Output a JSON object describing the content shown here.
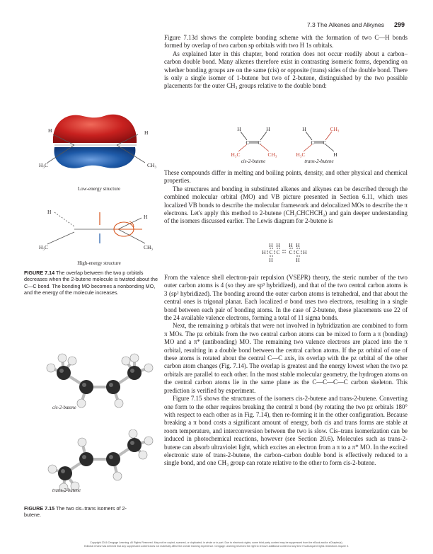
{
  "header": {
    "section": "7.3 The Alkenes and Alkynes",
    "page_number": "299"
  },
  "main": {
    "p1": "Figure 7.13d shows the complete bonding scheme with the formation of two C—H bonds formed by overlap of two carbon sp orbitals with two H 1s orbitals.",
    "p2": "As explained later in this chapter, bond rotation does not occur readily about a carbon–carbon double bond. Many alkenes therefore exist in contrasting isomeric forms, depending on whether bonding groups are on the same (cis) or opposite (trans) sides of the double bond. There is only a single isomer of 1-butene but two of 2-butene, distinguished by the two possible placements for the outer CH₃ groups relative to the double bond:",
    "p3": "These compounds differ in melting and boiling points, density, and other physical and chemical properties.",
    "p4": "The structures and bonding in substituted alkenes and alkynes can be described through the combined molecular orbital (MO) and VB picture presented in Section 6.11, which uses localized VB bonds to describe the molecular framework and delocalized MOs to describe the π electrons. Let's apply this method to 2-butene (CH₃CHCHCH₃) and gain deeper understanding of the isomers discussed earlier. The Lewis diagram for 2-butene is",
    "p5": "From the valence shell electron-pair repulsion (VSEPR) theory, the steric number of the two outer carbon atoms is 4 (so they are sp³ hybridized), and that of the two central carbon atoms is 3 (sp² hybridized). The bonding around the outer carbon atoms is tetrahedral, and that about the central ones is trigonal planar. Each localized σ bond uses two electrons, resulting in a single bond between each pair of bonding atoms. In the case of 2-butene, these placements use 22 of the 24 available valence electrons, forming a total of 11 sigma bonds.",
    "p6": "Next, the remaining p orbitals that were not involved in hybridization are combined to form π MOs. The pz orbitals from the two central carbon atoms can be mixed to form a π (bonding) MO and a π* (antibonding) MO. The remaining two valence electrons are placed into the π orbital, resulting in a double bond between the central carbon atoms. If the pz orbital of one of these atoms is rotated about the central C—C axis, its overlap with the pz orbital of the other carbon atom changes (Fig. 7.14). The overlap is greatest and the energy lowest when the two pz orbitals are parallel to each other. In the most stable molecular geometry, the hydrogen atoms on the central carbon atoms lie in the same plane as the C—C—C—C carbon skeleton. This prediction is verified by experiment.",
    "p7": "Figure 7.15 shows the structures of the isomers cis-2-butene and trans-2-butene. Converting one form to the other requires breaking the central π bond (by rotating the two pz orbitals 180° with respect to each other as in Fig. 7.14), then re-forming it in the other configuration. Because breaking a π bond costs a significant amount of energy, both cis and trans forms are stable at room temperature, and interconversion between the two is slow. Cis–trans isomerization can be induced in photochemical reactions, however (see Section 20.6). Molecules such as trans-2-butene can absorb ultraviolet light, which excites an electron from a π to a π* MO. In the excited electronic state of trans-2-butene, the carbon–carbon double bond is effectively reduced to a single bond, and one CH₃ group can rotate relative to the other to form cis-2-butene."
  },
  "isomers": {
    "cis_label": "cis-2-butene",
    "trans_label": "trans-2-butene",
    "atom_h": "H",
    "atom_c": "C",
    "atom_h3c": "H₃C",
    "atom_ch3": "CH₃"
  },
  "fig714": {
    "low_label": "Low-energy structure",
    "high_label": "High-energy structure",
    "caption_num": "FIGURE 7.14",
    "caption_text": "The overlap between the two p orbitals decreases when the 2-butene molecule is twisted about the C—C bond. The bonding MO becomes a nonbonding MO, and the energy of the molecule increases."
  },
  "fig715": {
    "cis_label": "cis-2-butene",
    "trans_label": "trans-2-butene",
    "caption_num": "FIGURE 7.15",
    "caption_text": "The two cis–trans isomers of 2-butene."
  },
  "footer": {
    "line1": "Copyright 2016 Cengage Learning. All Rights Reserved. May not be copied, scanned, or duplicated, in whole or in part. Due to electronic rights, some third party content may be suppressed from the eBook and/or eChapter(s).",
    "line2": "Editorial review has deemed that any suppressed content does not materially affect the overall learning experience. Cengage Learning reserves the right to remove additional content at any time if subsequent rights restrictions require it."
  },
  "colors": {
    "red_lobe": "#c8211f",
    "blue_lobe": "#1e5aa8",
    "orange_mark": "#d6551d",
    "dark_ball": "#2b2b2b"
  }
}
